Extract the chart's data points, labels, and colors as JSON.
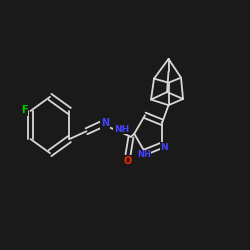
{
  "background_color": "#1a1a1a",
  "bond_color": "#d8d8d8",
  "atom_colors": {
    "N": "#4444ff",
    "O": "#ff2200",
    "F": "#00cc00",
    "C": "#d8d8d8"
  },
  "figsize": [
    2.5,
    2.5
  ],
  "dpi": 100
}
